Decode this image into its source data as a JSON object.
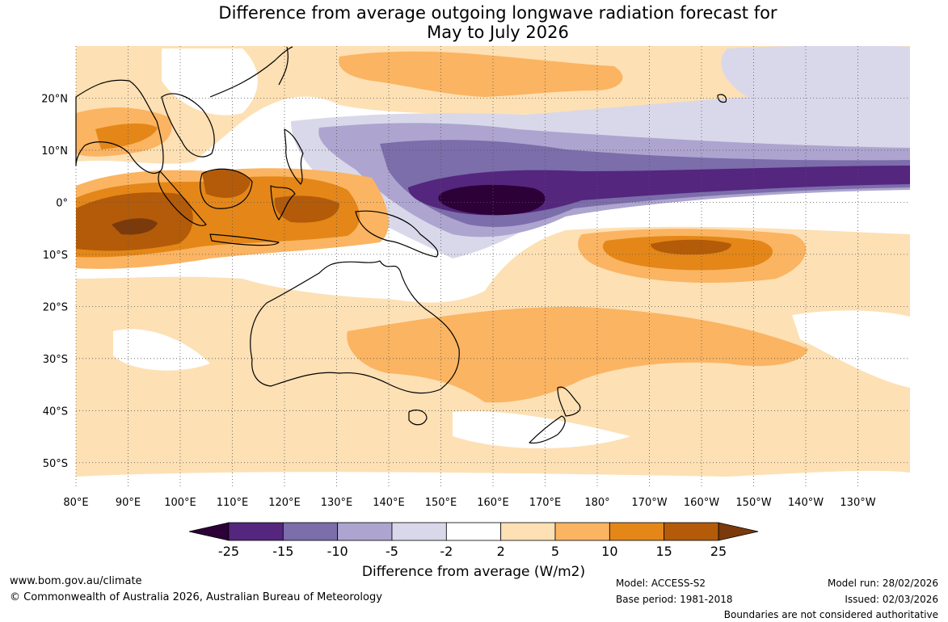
{
  "title": {
    "line1": "Difference from average outgoing longwave radiation forecast for",
    "line2": "May to July 2026"
  },
  "axes": {
    "lon_labels": [
      "80°E",
      "90°E",
      "100°E",
      "110°E",
      "120°E",
      "130°E",
      "140°E",
      "150°E",
      "160°E",
      "170°E",
      "180°",
      "170°W",
      "160°W",
      "150°W",
      "140°W",
      "130°W"
    ],
    "lon_values": [
      80,
      90,
      100,
      110,
      120,
      130,
      140,
      150,
      160,
      170,
      180,
      190,
      200,
      210,
      220,
      230
    ],
    "lat_labels": [
      "20°N",
      "10°N",
      "0°",
      "10°S",
      "20°S",
      "30°S",
      "40°S",
      "50°S"
    ],
    "lat_values": [
      20,
      10,
      0,
      -10,
      -20,
      -30,
      -40,
      -50
    ],
    "lon_range": [
      80,
      240
    ],
    "lat_range": [
      -55,
      30
    ]
  },
  "colorbar": {
    "label": "Difference from average (W/m2)",
    "ticks": [
      "-25",
      "-15",
      "-10",
      "-5",
      "-2",
      "2",
      "5",
      "10",
      "15",
      "25"
    ],
    "low_extend_color": "#2d0038",
    "high_extend_color": "#7a3a0c",
    "colors": [
      "#54267e",
      "#7c6dab",
      "#ada5cf",
      "#d9d8ea",
      "#ffffff",
      "#fde0b4",
      "#fbb462",
      "#e48718",
      "#b45b09"
    ]
  },
  "footer": {
    "website": "www.bom.gov.au/climate",
    "copyright": "© Commonwealth of Australia 2026, Australian Bureau of Meteorology",
    "model": "Model: ACCESS-S2",
    "base_period": "Base period: 1981-2018",
    "model_run": "Model run: 28/02/2026",
    "issued": "Issued: 02/03/2026",
    "disclaimer": "Boundaries are not considered authoritative"
  }
}
